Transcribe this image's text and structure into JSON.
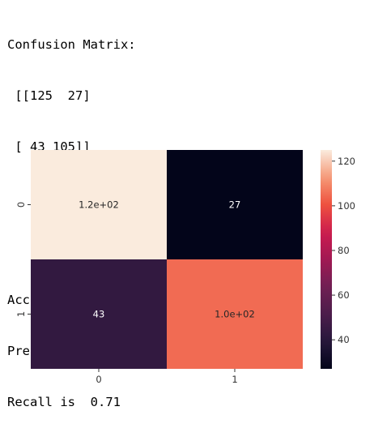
{
  "console": {
    "lines": [
      "Confusion Matrix:",
      " [[125  27]",
      " [ 43 105]]",
      "",
      "",
      "Accuracy is  76.67 %",
      "Precision is  0.8",
      "Recall is  0.71"
    ]
  },
  "chart_data": {
    "type": "heatmap",
    "title": "",
    "xlabel": "",
    "ylabel": "",
    "x_categories": [
      "0",
      "1"
    ],
    "y_categories": [
      "0",
      "1"
    ],
    "values": [
      [
        125,
        27
      ],
      [
        43,
        105
      ]
    ],
    "annotations": [
      [
        "1.2e+02",
        "27"
      ],
      [
        "43",
        "1.0e+02"
      ]
    ],
    "colormap": "rocket",
    "colorbar": {
      "range": [
        27,
        125
      ],
      "ticks": [
        40,
        60,
        80,
        100,
        120
      ]
    },
    "grid": false
  }
}
